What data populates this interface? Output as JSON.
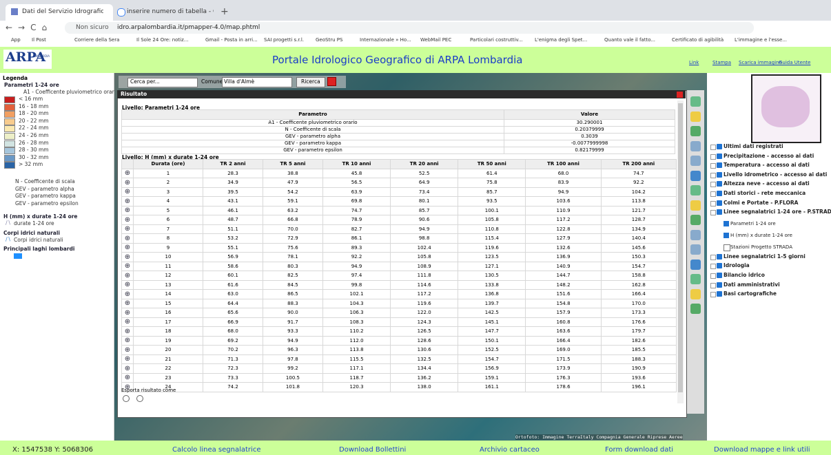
{
  "browser": {
    "tabs": [
      "Dati del Servizio Idrografico di A",
      "inserire numero di tabella - Cerca"
    ],
    "security": "Non sicuro",
    "url": "idro.arpalombardia.it/pmapper-4.0/map.phtml",
    "bookmarks": [
      "App",
      "Il Post",
      "Corriere della Sera",
      "Il Sole 24 Ore: notiz...",
      "Gmail - Posta in arri...",
      "SAI progetti s.r.l.",
      "GeoStru PS",
      "Internazionale » Ho...",
      "WebMail PEC",
      "Particolari costruttiv...",
      "L'enigma degli Spet...",
      "Quanto vale il fatto...",
      "Certificato di agibilità",
      "L'immagine e l'esse..."
    ]
  },
  "header": {
    "logo": "ARPA",
    "logo_sub": "LOMBARDIA",
    "title": "Portale Idrologico Geografico di ARPA Lombardia",
    "links": [
      "Link",
      "Stampa",
      "Scarica immagine",
      "Guida Utente"
    ]
  },
  "legend": {
    "title": "Legenda",
    "group1": "Parametri 1-24 ore",
    "layer1": "A1 - Coefficente pluviometrico orario",
    "classes": [
      {
        "label": "< 16 mm",
        "color": "#c81e1e"
      },
      {
        "label": "16 - 18 mm",
        "color": "#e2603c"
      },
      {
        "label": "18 - 20 mm",
        "color": "#f2a062"
      },
      {
        "label": "20 - 22 mm",
        "color": "#f8cc8e"
      },
      {
        "label": "22 - 24 mm",
        "color": "#fbe9b0"
      },
      {
        "label": "24 - 26 mm",
        "color": "#eef0c8"
      },
      {
        "label": "26 - 28 mm",
        "color": "#d2e4e2"
      },
      {
        "label": "28 - 30 mm",
        "color": "#a6c6dc"
      },
      {
        "label": "30 - 32 mm",
        "color": "#6a98c6"
      },
      {
        "label": "> 32 mm",
        "color": "#2a64a6"
      }
    ],
    "layers": [
      "N - Coefficente di scala",
      "GEV - parametro alpha",
      "GEV - parametro kappa",
      "GEV - parametro epsilon"
    ],
    "group2": "H (mm) x durate 1-24 ore",
    "layer2": "durate 1-24 ore",
    "group3": "Corpi idrici naturali",
    "layer3": "Corpi idrici naturali",
    "group4": "Principali laghi lombardi"
  },
  "search": {
    "select": "Cerca per...",
    "label": "Comune",
    "input": "Villa d'Almè",
    "button": "Ricerca"
  },
  "dialog": {
    "title": "Risultato",
    "level1": "Livello: Parametri 1-24 ore",
    "params_header": [
      "Parametro",
      "Valore"
    ],
    "params": [
      [
        "A1 - Coefficente pluviometrico orario",
        "30.290001"
      ],
      [
        "N - Coefficente di scala",
        "0.20379999"
      ],
      [
        "GEV - parametro alpha",
        "0.3039"
      ],
      [
        "GEV - parametro kappa",
        "-0.0077999998"
      ],
      [
        "GEV - parametro epsilon",
        "0.82179999"
      ]
    ],
    "level2": "Livello: H (mm) x durate 1-24 ore",
    "table_header": [
      "Durata (ore)",
      "TR 2 anni",
      "TR 5 anni",
      "TR 10 anni",
      "TR 20 anni",
      "TR 50 anni",
      "TR 100 anni",
      "TR 200 anni"
    ],
    "rows": [
      [
        "1",
        "28.3",
        "38.8",
        "45.8",
        "52.5",
        "61.4",
        "68.0",
        "74.7"
      ],
      [
        "2",
        "34.9",
        "47.9",
        "56.5",
        "64.9",
        "75.8",
        "83.9",
        "92.2"
      ],
      [
        "3",
        "39.5",
        "54.2",
        "63.9",
        "73.4",
        "85.7",
        "94.9",
        "104.2"
      ],
      [
        "4",
        "43.1",
        "59.1",
        "69.8",
        "80.1",
        "93.5",
        "103.6",
        "113.8"
      ],
      [
        "5",
        "46.1",
        "63.2",
        "74.7",
        "85.7",
        "100.1",
        "110.9",
        "121.7"
      ],
      [
        "6",
        "48.7",
        "66.8",
        "78.9",
        "90.6",
        "105.8",
        "117.2",
        "128.7"
      ],
      [
        "7",
        "51.1",
        "70.0",
        "82.7",
        "94.9",
        "110.8",
        "122.8",
        "134.9"
      ],
      [
        "8",
        "53.2",
        "72.9",
        "86.1",
        "98.8",
        "115.4",
        "127.9",
        "140.4"
      ],
      [
        "9",
        "55.1",
        "75.6",
        "89.3",
        "102.4",
        "119.6",
        "132.6",
        "145.6"
      ],
      [
        "10",
        "56.9",
        "78.1",
        "92.2",
        "105.8",
        "123.5",
        "136.9",
        "150.3"
      ],
      [
        "11",
        "58.6",
        "80.3",
        "94.9",
        "108.9",
        "127.1",
        "140.9",
        "154.7"
      ],
      [
        "12",
        "60.1",
        "82.5",
        "97.4",
        "111.8",
        "130.5",
        "144.7",
        "158.8"
      ],
      [
        "13",
        "61.6",
        "84.5",
        "99.8",
        "114.6",
        "133.8",
        "148.2",
        "162.8"
      ],
      [
        "14",
        "63.0",
        "86.5",
        "102.1",
        "117.2",
        "136.8",
        "151.6",
        "166.4"
      ],
      [
        "15",
        "64.4",
        "88.3",
        "104.3",
        "119.6",
        "139.7",
        "154.8",
        "170.0"
      ],
      [
        "16",
        "65.6",
        "90.0",
        "106.3",
        "122.0",
        "142.5",
        "157.9",
        "173.3"
      ],
      [
        "17",
        "66.9",
        "91.7",
        "108.3",
        "124.3",
        "145.1",
        "160.8",
        "176.6"
      ],
      [
        "18",
        "68.0",
        "93.3",
        "110.2",
        "126.5",
        "147.7",
        "163.6",
        "179.7"
      ],
      [
        "19",
        "69.2",
        "94.9",
        "112.0",
        "128.6",
        "150.1",
        "166.4",
        "182.6"
      ],
      [
        "20",
        "70.2",
        "96.3",
        "113.8",
        "130.6",
        "152.5",
        "169.0",
        "185.5"
      ],
      [
        "21",
        "71.3",
        "97.8",
        "115.5",
        "132.5",
        "154.7",
        "171.5",
        "188.3"
      ],
      [
        "22",
        "72.3",
        "99.2",
        "117.1",
        "134.4",
        "156.9",
        "173.9",
        "190.9"
      ],
      [
        "23",
        "73.3",
        "100.5",
        "118.7",
        "136.2",
        "159.1",
        "176.3",
        "193.6"
      ],
      [
        "24",
        "74.2",
        "101.8",
        "120.3",
        "138.0",
        "161.1",
        "178.6",
        "196.1"
      ]
    ],
    "export": "Esporta risultato come"
  },
  "map": {
    "attribution": "Ortofoto: Immagine TerraItaly Compagnia Generale Riprese Aeree"
  },
  "tree": [
    {
      "label": "Ultimi dati registrati"
    },
    {
      "label": "Precipitazione - accesso ai dati"
    },
    {
      "label": "Temperatura - accesso ai dati"
    },
    {
      "label": "Livello idrometrico - accesso ai dati"
    },
    {
      "label": "Altezza neve - accesso ai dati"
    },
    {
      "label": "Dati storici - rete meccanica"
    },
    {
      "label": "Colmi e Portate - P.FLORA"
    },
    {
      "label": "Linee segnalatrici 1-24 ore - P.STRADA",
      "children": [
        "Parametri 1-24 ore",
        "H (mm) x durate 1-24 ore",
        "Stazioni Progetto STRADA"
      ]
    },
    {
      "label": "Linee segnalatrici 1-5 giorni"
    },
    {
      "label": "Idrologia"
    },
    {
      "label": "Bilancio idrico"
    },
    {
      "label": "Dati amministrativi"
    },
    {
      "label": "Basi cartografiche"
    }
  ],
  "footer": [
    "X: 1547538  Y: 5068306",
    "Calcolo linea segnalatrice",
    "Download Bollettini",
    "Archivio cartaceo",
    "Form download dati",
    "Download mappe e link utili"
  ]
}
